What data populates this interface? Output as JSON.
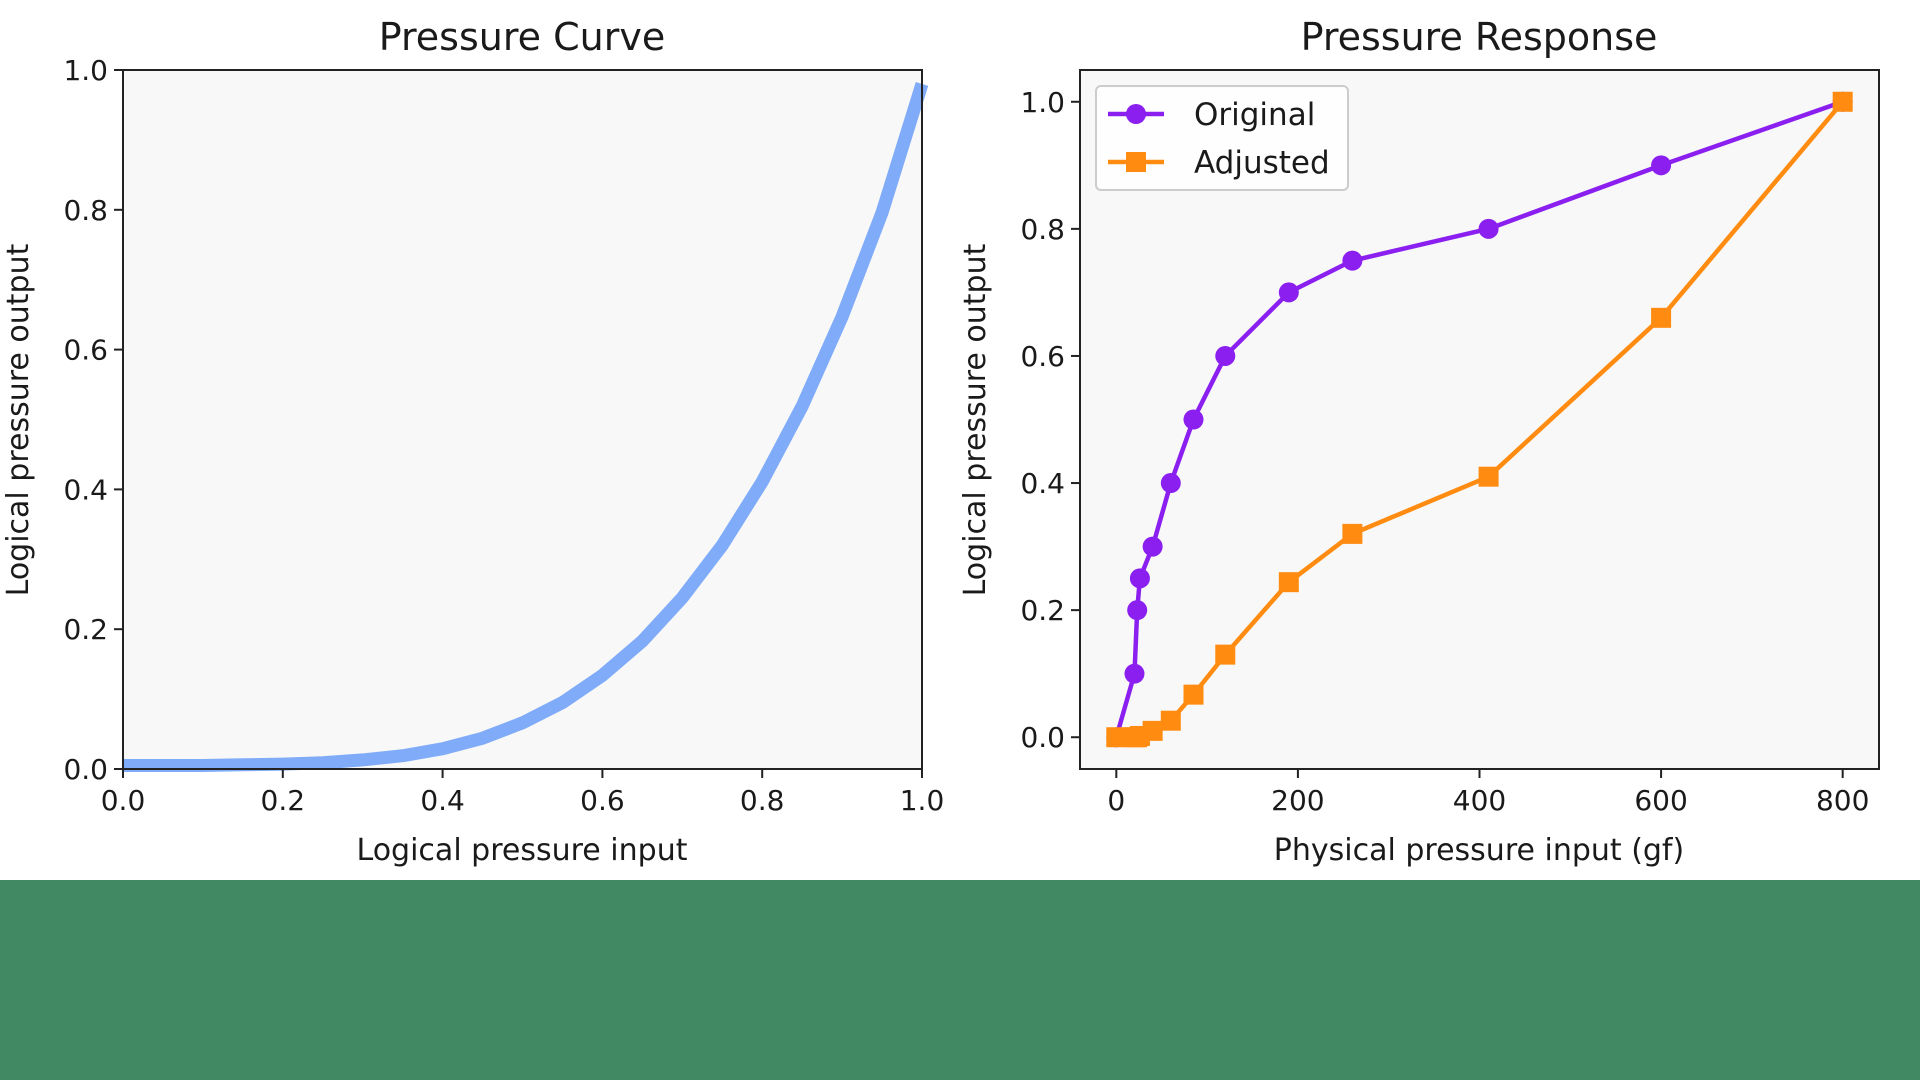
{
  "page": {
    "footer_color": "#418963"
  },
  "charts": [
    {
      "title": "Pressure Curve",
      "xlabel": "Logical pressure input",
      "ylabel": "Logical pressure output",
      "line_color": "#7fabf9",
      "background": "#f8f8f8"
    },
    {
      "title": "Pressure Response",
      "xlabel": "Physical pressure input (gf)",
      "ylabel": "Logical pressure output",
      "background": "#f8f8f8",
      "legend_position": "upper-left"
    }
  ],
  "chart_data": [
    {
      "type": "line",
      "title": "Pressure Curve",
      "xlabel": "Logical pressure input",
      "ylabel": "Logical pressure output",
      "xlim": [
        0,
        1
      ],
      "ylim": [
        0,
        1
      ],
      "xticks": [
        "0.0",
        "0.2",
        "0.4",
        "0.6",
        "0.8",
        "1.0"
      ],
      "yticks": [
        "0.0",
        "0.2",
        "0.4",
        "0.6",
        "0.8",
        "1.0"
      ],
      "x": [
        0.0,
        0.05,
        0.1,
        0.15,
        0.2,
        0.25,
        0.3,
        0.35,
        0.4,
        0.45,
        0.5,
        0.55,
        0.6,
        0.65,
        0.7,
        0.75,
        0.8,
        0.85,
        0.9,
        0.95,
        1.0
      ],
      "series": [
        {
          "color": "#7fabf9",
          "values": [
            0.005,
            0.005,
            0.005,
            0.006,
            0.007,
            0.009,
            0.013,
            0.019,
            0.029,
            0.044,
            0.066,
            0.095,
            0.134,
            0.183,
            0.245,
            0.32,
            0.411,
            0.519,
            0.647,
            0.796,
            0.98
          ]
        }
      ],
      "grid": false
    },
    {
      "type": "line",
      "title": "Pressure Response",
      "xlabel": "Physical pressure input (gf)",
      "ylabel": "Logical pressure output",
      "xlim": [
        -40,
        840
      ],
      "ylim": [
        -0.05,
        1.05
      ],
      "xticks": [
        "0",
        "200",
        "400",
        "600",
        "800"
      ],
      "yticks": [
        "0.0",
        "0.2",
        "0.4",
        "0.6",
        "0.8",
        "1.0"
      ],
      "legend": "upper-left",
      "grid": false,
      "series": [
        {
          "name": "Original",
          "color": "#8a1ff0",
          "marker": "circle",
          "points": [
            [
              0,
              0.0
            ],
            [
              20,
              0.1
            ],
            [
              23,
              0.2
            ],
            [
              26,
              0.25
            ],
            [
              40,
              0.3
            ],
            [
              60,
              0.4
            ],
            [
              85,
              0.5
            ],
            [
              120,
              0.6
            ],
            [
              190,
              0.7
            ],
            [
              260,
              0.75
            ],
            [
              410,
              0.8
            ],
            [
              600,
              0.9
            ],
            [
              800,
              1.0
            ]
          ]
        },
        {
          "name": "Adjusted",
          "color": "#ff8c10",
          "marker": "square",
          "points": [
            [
              0,
              0.0
            ],
            [
              20,
              0.0
            ],
            [
              23,
              0.0
            ],
            [
              26,
              0.002
            ],
            [
              40,
              0.01
            ],
            [
              60,
              0.026
            ],
            [
              85,
              0.067
            ],
            [
              120,
              0.13
            ],
            [
              190,
              0.244
            ],
            [
              260,
              0.32
            ],
            [
              410,
              0.41
            ],
            [
              600,
              0.66
            ],
            [
              800,
              1.0
            ]
          ]
        }
      ]
    }
  ]
}
